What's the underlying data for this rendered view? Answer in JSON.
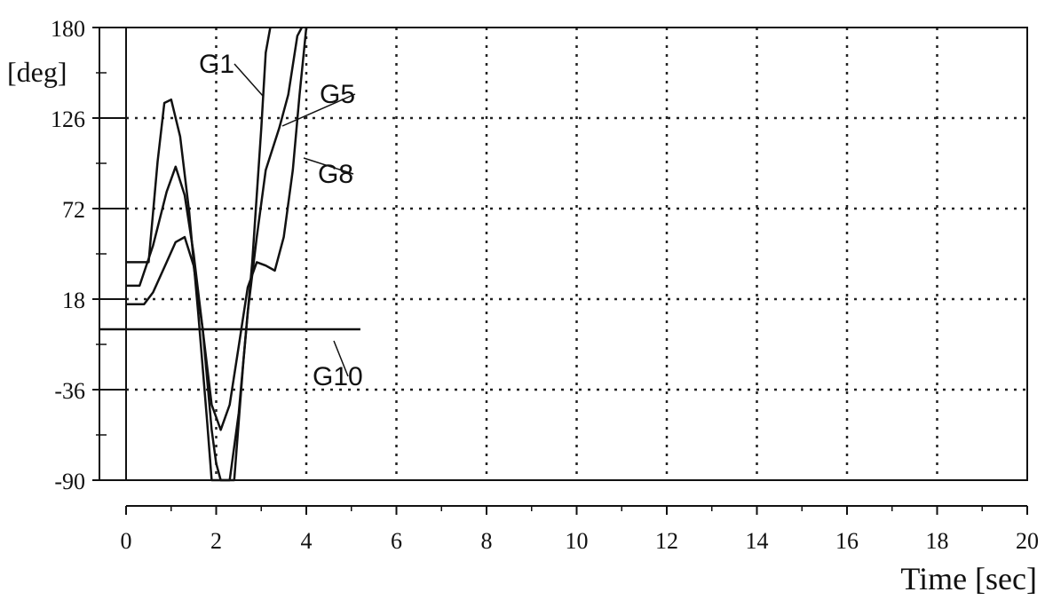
{
  "chart_data": {
    "type": "line",
    "title": "",
    "xlabel": "Time [sec]",
    "ylabel": "[deg]",
    "xlim": [
      0,
      20
    ],
    "ylim": [
      -90,
      180
    ],
    "x_ticks": [
      0,
      2,
      4,
      6,
      8,
      10,
      12,
      14,
      16,
      18,
      20
    ],
    "y_ticks": [
      180,
      126,
      72,
      18,
      -36,
      -90
    ],
    "grid": true,
    "series": [
      {
        "name": "G1",
        "x": [
          0,
          0.5,
          0.7,
          0.85,
          1.0,
          1.2,
          1.4,
          1.6,
          1.8,
          1.9,
          2.0,
          2.2,
          2.4,
          2.6,
          2.8,
          3.0,
          3.1,
          3.2
        ],
        "y": [
          40,
          40,
          100,
          135,
          137,
          115,
          70,
          10,
          -55,
          -90,
          -90,
          -90,
          -90,
          -20,
          40,
          120,
          165,
          180
        ]
      },
      {
        "name": "G5",
        "x": [
          0,
          0.3,
          0.6,
          0.9,
          1.1,
          1.3,
          1.5,
          1.7,
          1.9,
          2.0,
          2.1,
          2.3,
          2.5,
          2.7,
          2.9,
          3.1,
          3.4,
          3.6,
          3.8,
          3.9
        ],
        "y": [
          26,
          26,
          50,
          82,
          97,
          80,
          45,
          0,
          -60,
          -80,
          -90,
          -90,
          -50,
          10,
          55,
          95,
          120,
          140,
          175,
          180
        ]
      },
      {
        "name": "G8",
        "x": [
          0,
          0.4,
          0.6,
          0.9,
          1.1,
          1.3,
          1.5,
          1.7,
          1.9,
          2.1,
          2.3,
          2.5,
          2.7,
          2.9,
          3.1,
          3.3,
          3.5,
          3.7,
          3.85,
          4.0
        ],
        "y": [
          15,
          15,
          22,
          40,
          52,
          55,
          38,
          0,
          -45,
          -60,
          -45,
          -10,
          25,
          40,
          38,
          35,
          55,
          95,
          140,
          180
        ]
      },
      {
        "name": "G10",
        "x": [
          -0.6,
          5.2
        ],
        "y": [
          0,
          0
        ]
      }
    ]
  }
}
